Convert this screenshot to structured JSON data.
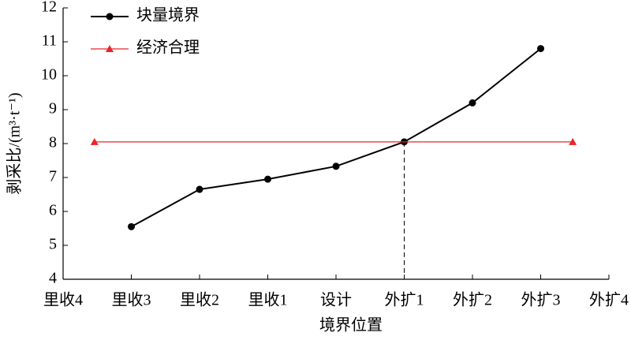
{
  "chart_data": {
    "type": "line",
    "x_label": "境界位置",
    "y_label": "剥采比/(m³·t⁻¹)",
    "xlim": [
      0,
      8
    ],
    "xticks": [
      {
        "value": 0,
        "label": "里收4"
      },
      {
        "value": 1,
        "label": "里收3"
      },
      {
        "value": 2,
        "label": "里收2"
      },
      {
        "value": 3,
        "label": "里收1"
      },
      {
        "value": 4,
        "label": "设计"
      },
      {
        "value": 5,
        "label": "外扩1"
      },
      {
        "value": 6,
        "label": "外扩2"
      },
      {
        "value": 7,
        "label": "外扩3"
      },
      {
        "value": 8,
        "label": "外扩4"
      }
    ],
    "ylim": [
      4,
      12
    ],
    "yticks": [
      4,
      5,
      6,
      7,
      8,
      9,
      10,
      11,
      12
    ],
    "legend": "upper left",
    "series": [
      {
        "name": "块量境界",
        "color": "#000000",
        "marker": "circle",
        "x": [
          1,
          2,
          3,
          4,
          5,
          6,
          7
        ],
        "values": [
          5.55,
          6.65,
          6.95,
          7.33,
          8.05,
          9.2,
          10.8
        ]
      },
      {
        "name": "经济合理",
        "color": "#e8262a",
        "marker": "triangle",
        "x": [
          0.46,
          7.47
        ],
        "values": [
          8.05,
          8.05
        ]
      }
    ]
  }
}
